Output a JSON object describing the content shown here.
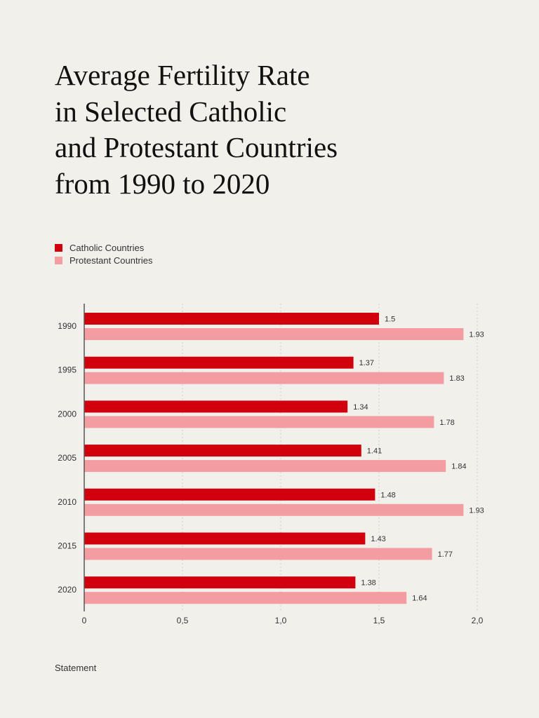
{
  "title": "Average Fertility Rate\nin Selected Catholic\nand Protestant Countries\nfrom 1990 to 2020",
  "source": "Statement",
  "chart_data": {
    "type": "bar",
    "orientation": "horizontal",
    "title": "Average Fertility Rate in Selected Catholic and Protestant Countries from 1990 to 2020",
    "categories": [
      "1990",
      "1995",
      "2000",
      "2005",
      "2010",
      "2015",
      "2020"
    ],
    "series": [
      {
        "name": "Catholic Countries",
        "color": "#d0000d",
        "values": [
          1.5,
          1.37,
          1.34,
          1.41,
          1.48,
          1.43,
          1.38
        ]
      },
      {
        "name": "Protestant Countries",
        "color": "#f39da2",
        "values": [
          1.93,
          1.83,
          1.78,
          1.84,
          1.93,
          1.77,
          1.64
        ]
      }
    ],
    "xlim": [
      0,
      2.0
    ],
    "xticks": [
      0,
      0.5,
      1.0,
      1.5,
      2.0
    ],
    "xtick_labels": [
      "0",
      "0,5",
      "1,0",
      "1,5",
      "2,0"
    ],
    "value_labels": [
      [
        "1.5",
        "1.37",
        "1.34",
        "1.41",
        "1.48",
        "1.43",
        "1.38"
      ],
      [
        "1.93",
        "1.83",
        "1.78",
        "1.84",
        "1.93",
        "1.77",
        "1.64"
      ]
    ],
    "grid": "vertical-dotted",
    "legend": "top-left",
    "xlabel": "",
    "ylabel": ""
  }
}
